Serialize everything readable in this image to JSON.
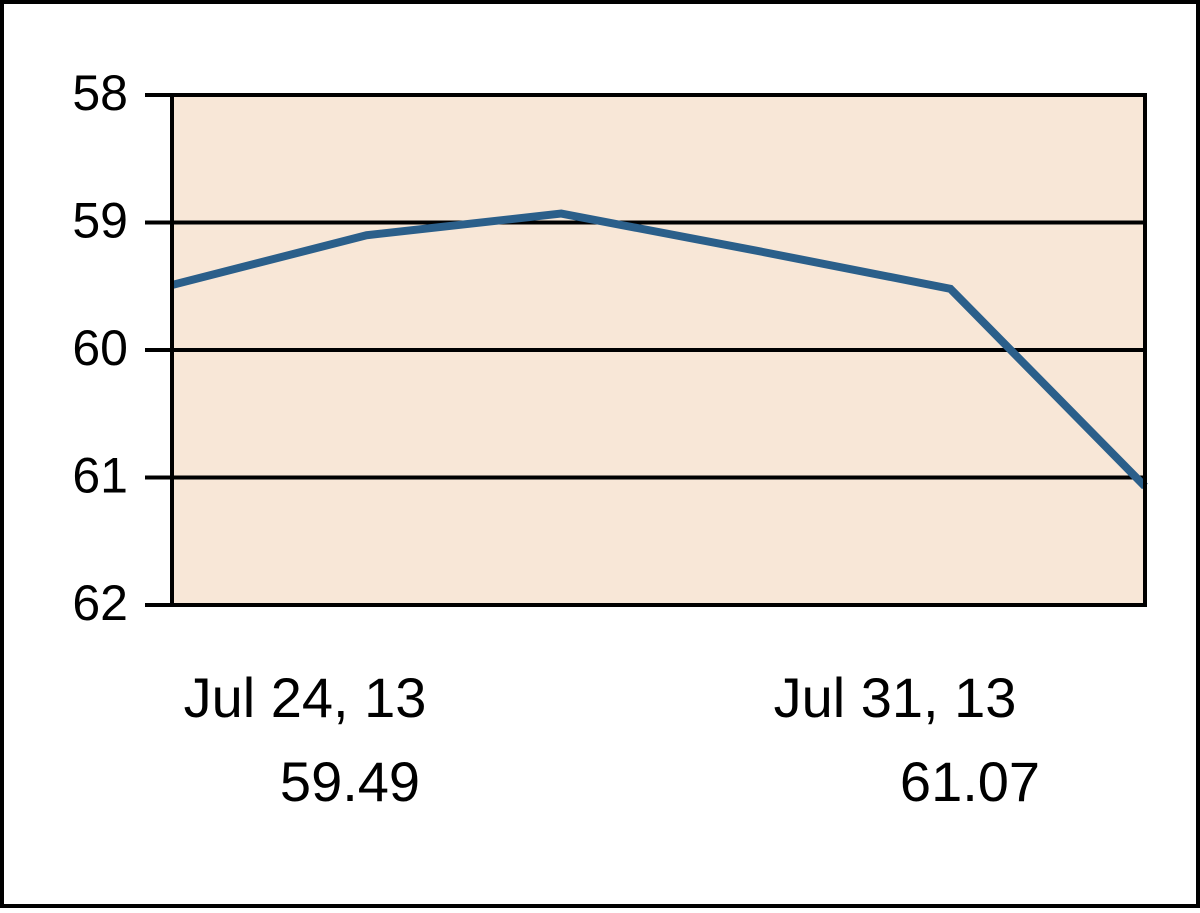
{
  "chart_data": {
    "type": "line",
    "categories": [
      "Jul 24, 13",
      null,
      null,
      null,
      null,
      "Jul 31, 13"
    ],
    "values": [
      59.49,
      59.1,
      58.93,
      59.22,
      59.52,
      61.07
    ],
    "color": "#2b5f8a",
    "ylim": [
      58,
      62
    ],
    "yticks": [
      58,
      59,
      60,
      61,
      62
    ],
    "invert_y": true,
    "grid": true,
    "plot_background": "#f8e7d7"
  }
}
